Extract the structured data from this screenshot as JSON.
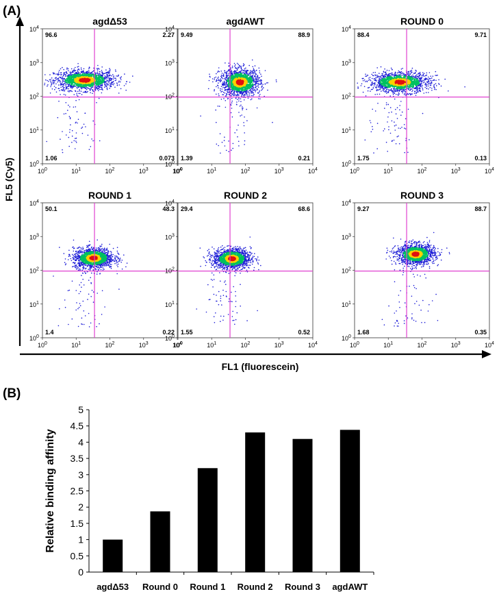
{
  "panel_a": {
    "label": "(A)",
    "y_axis_label": "FL5 (Cy5)",
    "x_axis_label": "FL1 (fluorescein)",
    "tick_base": "10",
    "tick_exponents": [
      "0",
      "1",
      "2",
      "3",
      "4"
    ]
  },
  "panel_b": {
    "label": "(B)"
  },
  "chart_data": [
    {
      "type": "scatter",
      "title": "agdΔ53",
      "xlabel": "FL1 (fluorescein)",
      "ylabel": "FL5 (Cy5)",
      "scale": "log",
      "xlim": [
        1,
        10000
      ],
      "ylim": [
        1,
        10000
      ],
      "gate": {
        "x": 35,
        "y": 95
      },
      "quadrants": {
        "upper_left": "96.6",
        "upper_right": "2.27",
        "lower_left": "1.06",
        "lower_right": "0.073"
      },
      "population": {
        "center": [
          18,
          300
        ],
        "spread_x": 0.45,
        "spread_y": 0.15
      }
    },
    {
      "type": "scatter",
      "title": "agdAWT",
      "xlabel": "FL1 (fluorescein)",
      "ylabel": "FL5 (Cy5)",
      "scale": "log",
      "xlim": [
        1,
        10000
      ],
      "ylim": [
        1,
        10000
      ],
      "gate": {
        "x": 35,
        "y": 95
      },
      "quadrants": {
        "upper_left": "9.49",
        "upper_right": "88.9",
        "lower_left": "1.39",
        "lower_right": "0.21"
      },
      "population": {
        "center": [
          70,
          260
        ],
        "spread_x": 0.3,
        "spread_y": 0.2
      }
    },
    {
      "type": "scatter",
      "title": "ROUND 0",
      "xlabel": "FL1 (fluorescein)",
      "ylabel": "FL5 (Cy5)",
      "scale": "log",
      "xlim": [
        1,
        10000
      ],
      "ylim": [
        1,
        10000
      ],
      "gate": {
        "x": 35,
        "y": 95
      },
      "quadrants": {
        "upper_left": "88.4",
        "upper_right": "9.71",
        "lower_left": "1.75",
        "lower_right": "0.13"
      },
      "population": {
        "center": [
          22,
          260
        ],
        "spread_x": 0.45,
        "spread_y": 0.15
      }
    },
    {
      "type": "scatter",
      "title": "ROUND 1",
      "xlabel": "FL1 (fluorescein)",
      "ylabel": "FL5 (Cy5)",
      "scale": "log",
      "xlim": [
        1,
        10000
      ],
      "ylim": [
        1,
        10000
      ],
      "gate": {
        "x": 35,
        "y": 95
      },
      "quadrants": {
        "upper_left": "50.1",
        "upper_right": "48.3",
        "lower_left": "1.4",
        "lower_right": "0.22"
      },
      "population": {
        "center": [
          33,
          230
        ],
        "spread_x": 0.3,
        "spread_y": 0.15
      }
    },
    {
      "type": "scatter",
      "title": "ROUND 2",
      "xlabel": "FL1 (fluorescein)",
      "ylabel": "FL5 (Cy5)",
      "scale": "log",
      "xlim": [
        1,
        10000
      ],
      "ylim": [
        1,
        10000
      ],
      "gate": {
        "x": 35,
        "y": 95
      },
      "quadrants": {
        "upper_left": "29.4",
        "upper_right": "68.6",
        "lower_left": "1.55",
        "lower_right": "0.52"
      },
      "population": {
        "center": [
          40,
          220
        ],
        "spread_x": 0.28,
        "spread_y": 0.15
      }
    },
    {
      "type": "scatter",
      "title": "ROUND 3",
      "xlabel": "FL1 (fluorescein)",
      "ylabel": "FL5 (Cy5)",
      "scale": "log",
      "xlim": [
        1,
        10000
      ],
      "ylim": [
        1,
        10000
      ],
      "gate": {
        "x": 35,
        "y": 95
      },
      "quadrants": {
        "upper_left": "9.27",
        "upper_right": "88.7",
        "lower_left": "1.68",
        "lower_right": "0.35"
      },
      "population": {
        "center": [
          65,
          300
        ],
        "spread_x": 0.28,
        "spread_y": 0.15
      }
    },
    {
      "type": "bar",
      "title": "",
      "xlabel": "",
      "ylabel": "Relative binding affinity",
      "categories": [
        "agdΔ53",
        "Round 0",
        "Round 1",
        "Round 2",
        "Round 3",
        "agdAWT"
      ],
      "values": [
        1.0,
        1.87,
        3.2,
        4.3,
        4.1,
        4.38
      ],
      "ylim": [
        0,
        5
      ],
      "yticks": [
        "0",
        "0.5",
        "1",
        "1.5",
        "2",
        "2.5",
        "3",
        "3.5",
        "4",
        "4.5",
        "5"
      ],
      "grid": false,
      "colors": {
        "bar": "#000000"
      }
    }
  ],
  "colors": {
    "gate_line": "#e040d0",
    "density_low": "#1a1ad6",
    "density_mid": "#00c060",
    "density_high": "#ffd000",
    "density_peak": "#e01010"
  }
}
